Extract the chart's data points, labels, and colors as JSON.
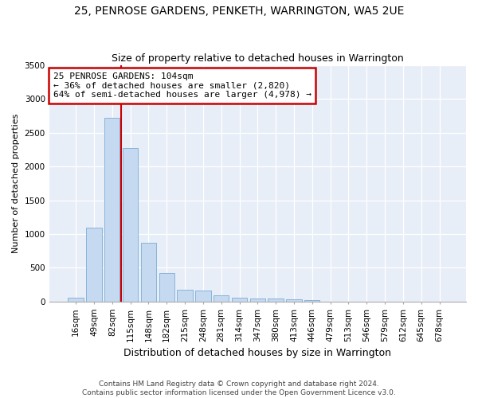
{
  "title": "25, PENROSE GARDENS, PENKETH, WARRINGTON, WA5 2UE",
  "subtitle": "Size of property relative to detached houses in Warrington",
  "xlabel": "Distribution of detached houses by size in Warrington",
  "ylabel": "Number of detached properties",
  "categories": [
    "16sqm",
    "49sqm",
    "82sqm",
    "115sqm",
    "148sqm",
    "182sqm",
    "215sqm",
    "248sqm",
    "281sqm",
    "314sqm",
    "347sqm",
    "380sqm",
    "413sqm",
    "446sqm",
    "479sqm",
    "513sqm",
    "546sqm",
    "579sqm",
    "612sqm",
    "645sqm",
    "678sqm"
  ],
  "values": [
    55,
    1100,
    2720,
    2280,
    870,
    420,
    175,
    165,
    90,
    60,
    50,
    45,
    35,
    28,
    0,
    0,
    0,
    0,
    0,
    0,
    0
  ],
  "bar_color": "#c5d9f0",
  "bar_edge_color": "#7aadd4",
  "vline_x": 3,
  "annotation_text": "25 PENROSE GARDENS: 104sqm\n← 36% of detached houses are smaller (2,820)\n64% of semi-detached houses are larger (4,978) →",
  "annotation_box_color": "#ffffff",
  "annotation_box_edge_color": "#cc0000",
  "vline_color": "#cc0000",
  "ylim": [
    0,
    3500
  ],
  "yticks": [
    0,
    500,
    1000,
    1500,
    2000,
    2500,
    3000,
    3500
  ],
  "bg_color": "#e8eef8",
  "footer": "Contains HM Land Registry data © Crown copyright and database right 2024.\nContains public sector information licensed under the Open Government Licence v3.0.",
  "title_fontsize": 10,
  "subtitle_fontsize": 9,
  "xlabel_fontsize": 9,
  "ylabel_fontsize": 8,
  "tick_fontsize": 7.5,
  "footer_fontsize": 6.5
}
